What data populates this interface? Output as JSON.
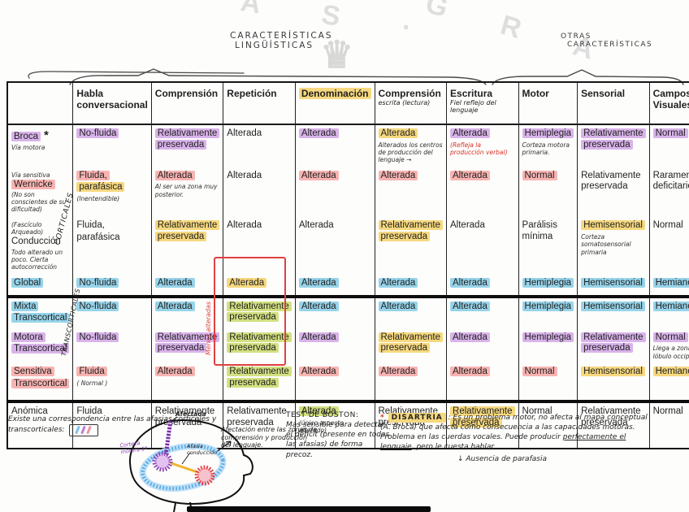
{
  "colors": {
    "purple": "#d9b3ea",
    "pink": "#f8b4b2",
    "yellow": "#f6d87f",
    "blue": "#97d4ea",
    "green": "#d3e081",
    "red_ink": "#e04040"
  },
  "watermark": {
    "text1": "A S ·",
    "text2": "G R A",
    "crown": "♛"
  },
  "annotations": {
    "linguistic_line1": "CARACTERÍSTICAS",
    "linguistic_line2": "LINGÜÍSTICAS",
    "other_line1": "OTRAS",
    "other_line2": "CARACTERÍSTICAS"
  },
  "table": {
    "group_labels": {
      "cortical": "CORTICALES",
      "transcortical": "TRANSCORTICALES"
    },
    "repetition_note": "Menos alteradas",
    "columns": [
      {
        "label": "Habla conversacional"
      },
      {
        "label": "Comprensión"
      },
      {
        "label": "Repetición"
      },
      {
        "label": "Denominación",
        "hl": "yellow"
      },
      {
        "label": "Comprensión",
        "subnote": "escrita (lectura)"
      },
      {
        "label": "Escritura",
        "subnote": "Fiel reflejo del lenguaje"
      },
      {
        "label": "Motor"
      },
      {
        "label": "Sensorial"
      },
      {
        "label": "Campos Visuales"
      }
    ],
    "rows": [
      {
        "label_lines": [
          {
            "t": "Broca",
            "hl": "purple"
          }
        ],
        "mark": "*",
        "note_below": "Vía motora",
        "cells": [
          {
            "lines": [
              {
                "t": "No-fluida",
                "hl": "purple"
              }
            ]
          },
          {
            "lines": [
              {
                "t": "Relativamente preservada",
                "hl": "purple"
              }
            ]
          },
          {
            "lines": [
              {
                "t": "Alterada"
              }
            ]
          },
          {
            "lines": [
              {
                "t": "Alterada",
                "hl": "purple"
              }
            ]
          },
          {
            "lines": [
              {
                "t": "Alterada",
                "hl": "yellow"
              }
            ],
            "note": "Alterados los centros de producción del lenguaje →"
          },
          {
            "lines": [
              {
                "t": "Alterada",
                "hl": "purple"
              }
            ],
            "note": "(Refleja la producción verbal)",
            "note_red": true
          },
          {
            "lines": [
              {
                "t": "Hemiplegia",
                "hl": "purple"
              }
            ],
            "note": "Corteza motora primaria."
          },
          {
            "lines": [
              {
                "t": "Relativamente preservada",
                "hl": "purple"
              }
            ]
          },
          {
            "lines": [
              {
                "t": "Normal",
                "hl": "purple"
              }
            ]
          }
        ]
      },
      {
        "label_lines": [
          {
            "t": "Wernicke",
            "hl": "pink"
          }
        ],
        "note_above": "Vía sensitiva",
        "note_below": "(No son conscientes de su dificultad)",
        "cells": [
          {
            "lines": [
              {
                "t": "Fluida,",
                "hl": "pink"
              },
              {
                "t": "parafásica",
                "hl": "yellow"
              }
            ],
            "note": "(Inentendible)"
          },
          {
            "lines": [
              {
                "t": "Alterada",
                "hl": "pink"
              }
            ],
            "note": "Al ser una zona muy posterior."
          },
          {
            "lines": [
              {
                "t": "Alterada"
              }
            ]
          },
          {
            "lines": [
              {
                "t": "Alterada",
                "hl": "pink"
              }
            ]
          },
          {
            "lines": [
              {
                "t": "Alterada",
                "hl": "pink"
              }
            ]
          },
          {
            "lines": [
              {
                "t": "Alterada",
                "hl": "pink"
              }
            ]
          },
          {
            "lines": [
              {
                "t": "Normal",
                "hl": "pink"
              }
            ]
          },
          {
            "lines": [
              {
                "t": "Relativamente preservada"
              }
            ]
          },
          {
            "lines": [
              {
                "t": "Raramente deficitarios"
              }
            ]
          }
        ]
      },
      {
        "label_lines": [
          {
            "t": "Conducción"
          }
        ],
        "note_above": "(Fascículo Arqueado)",
        "note_below": "Todo alterado un poco. Cierta autocorrección",
        "cells": [
          {
            "lines": [
              {
                "t": "Fluida,"
              },
              {
                "t": "parafásica"
              }
            ]
          },
          {
            "lines": [
              {
                "t": "Relativamente preservada",
                "hl": "yellow"
              }
            ]
          },
          {
            "lines": [
              {
                "t": "Alterada"
              }
            ]
          },
          {
            "lines": [
              {
                "t": "Alterada"
              }
            ]
          },
          {
            "lines": [
              {
                "t": "Relativamente preservada",
                "hl": "yellow"
              }
            ]
          },
          {
            "lines": [
              {
                "t": "Alterada"
              }
            ]
          },
          {
            "lines": [
              {
                "t": "Parálisis mínima"
              }
            ]
          },
          {
            "lines": [
              {
                "t": "Hemisensorial",
                "hl": "yellow"
              }
            ],
            "note": "Corteza somatosensorial primaria"
          },
          {
            "lines": [
              {
                "t": "Normal"
              }
            ]
          }
        ]
      },
      {
        "label_lines": [
          {
            "t": "Global",
            "hl": "blue"
          }
        ],
        "cells": [
          {
            "lines": [
              {
                "t": "No-fluida",
                "hl": "blue"
              }
            ]
          },
          {
            "lines": [
              {
                "t": "Alterada",
                "hl": "blue"
              }
            ]
          },
          {
            "lines": [
              {
                "t": "Alterada",
                "hl": "yellow"
              }
            ]
          },
          {
            "lines": [
              {
                "t": "Alterada",
                "hl": "blue"
              }
            ]
          },
          {
            "lines": [
              {
                "t": "Alterada",
                "hl": "blue"
              }
            ]
          },
          {
            "lines": [
              {
                "t": "Alterada",
                "hl": "blue"
              }
            ]
          },
          {
            "lines": [
              {
                "t": "Hemiplegia",
                "hl": "blue"
              }
            ]
          },
          {
            "lines": [
              {
                "t": "Hemisensorial",
                "hl": "blue"
              }
            ]
          },
          {
            "lines": [
              {
                "t": "Hemianopsia",
                "hl": "blue"
              }
            ]
          }
        ]
      },
      {
        "label_lines": [
          {
            "t": "Mixta",
            "hl": "blue"
          },
          {
            "t": "Transcortical",
            "hl": "blue"
          }
        ],
        "section_start": true,
        "cells": [
          {
            "lines": [
              {
                "t": "No-fluida",
                "hl": "blue"
              }
            ]
          },
          {
            "lines": [
              {
                "t": "Alterada",
                "hl": "blue"
              }
            ]
          },
          {
            "lines": [
              {
                "t": "Relativamente preservada",
                "hl": "green"
              }
            ]
          },
          {
            "lines": [
              {
                "t": "Alterada",
                "hl": "blue"
              }
            ]
          },
          {
            "lines": [
              {
                "t": "Alterada",
                "hl": "blue"
              }
            ]
          },
          {
            "lines": [
              {
                "t": "Alterada",
                "hl": "blue"
              }
            ]
          },
          {
            "lines": [
              {
                "t": "Hemiplegia",
                "hl": "blue"
              }
            ]
          },
          {
            "lines": [
              {
                "t": "Hemisensorial",
                "hl": "blue"
              }
            ]
          },
          {
            "lines": [
              {
                "t": "Hemianopsia",
                "hl": "blue"
              }
            ]
          }
        ]
      },
      {
        "label_lines": [
          {
            "t": "Motora",
            "hl": "purple"
          },
          {
            "t": "Transcortical",
            "hl": "purple"
          }
        ],
        "cells": [
          {
            "lines": [
              {
                "t": "No-fluida",
                "hl": "purple"
              }
            ]
          },
          {
            "lines": [
              {
                "t": "Relativamente preservada",
                "hl": "purple"
              }
            ]
          },
          {
            "lines": [
              {
                "t": "Relativamente preservada",
                "hl": "green"
              }
            ]
          },
          {
            "lines": [
              {
                "t": "Alterada",
                "hl": "purple"
              }
            ]
          },
          {
            "lines": [
              {
                "t": "Relativamente preservada",
                "hl": "yellow"
              }
            ]
          },
          {
            "lines": [
              {
                "t": "Alterada",
                "hl": "purple"
              }
            ]
          },
          {
            "lines": [
              {
                "t": "Hemiplegia",
                "hl": "purple"
              }
            ]
          },
          {
            "lines": [
              {
                "t": "Relativamente preservada",
                "hl": "purple"
              }
            ]
          },
          {
            "lines": [
              {
                "t": "Normal",
                "hl": "purple"
              }
            ],
            "note": "Llega a zonas del lóbulo occipital"
          }
        ]
      },
      {
        "label_lines": [
          {
            "t": "Sensitiva",
            "hl": "pink"
          },
          {
            "t": "Transcortical",
            "hl": "pink"
          }
        ],
        "cells": [
          {
            "lines": [
              {
                "t": "Fluida",
                "hl": "pink"
              }
            ],
            "note": "( Normal )"
          },
          {
            "lines": [
              {
                "t": "Alterada",
                "hl": "pink"
              }
            ]
          },
          {
            "lines": [
              {
                "t": "Relativamente preservada",
                "hl": "green"
              }
            ]
          },
          {
            "lines": [
              {
                "t": "Alterada",
                "hl": "pink"
              }
            ]
          },
          {
            "lines": [
              {
                "t": "Alterada",
                "hl": "pink"
              }
            ]
          },
          {
            "lines": [
              {
                "t": "Alterada",
                "hl": "pink"
              }
            ]
          },
          {
            "lines": [
              {
                "t": "Normal",
                "hl": "pink"
              }
            ]
          },
          {
            "lines": [
              {
                "t": "Hemisensorial",
                "hl": "yellow"
              }
            ]
          },
          {
            "lines": [
              {
                "t": "Hemianopsia",
                "hl": "yellow"
              }
            ]
          }
        ]
      },
      {
        "label_lines": [
          {
            "t": "Anómica"
          }
        ],
        "section_start": true,
        "cells": [
          {
            "lines": [
              {
                "t": "Fluida"
              }
            ]
          },
          {
            "lines": [
              {
                "t": "Relativamente preservada"
              }
            ]
          },
          {
            "lines": [
              {
                "t": "Relativamente preservada"
              }
            ]
          },
          {
            "lines": [
              {
                "t": "Alterada",
                "hl": "green"
              }
            ],
            "note": "(único aspecto alterado)"
          },
          {
            "lines": [
              {
                "t": "Relativamente preservada"
              }
            ]
          },
          {
            "lines": [
              {
                "t": "Relativamente preservada",
                "hl": "yellow"
              }
            ]
          },
          {
            "lines": [
              {
                "t": "Normal"
              }
            ]
          },
          {
            "lines": [
              {
                "t": "Relativamente preservada"
              }
            ]
          },
          {
            "lines": [
              {
                "t": "Normal"
              }
            ]
          }
        ]
      }
    ]
  },
  "footnotes": {
    "correspondence_line1": "Existe una correspondencia entre las afasias corticales y",
    "correspondence_line2": "transcorticales:",
    "boston_title": "TEST DE BOSTON:",
    "boston_body": "Más sensible para detectar el déficit (presente en todas las afasias) de forma precoz.",
    "dis_mark": "*",
    "dis_title": "DISARTRIA",
    "dis_body_pre": ": Es un problema motor, no afecta al mapa conceptual (A. Broca) que afecta como consecuencia a las capacidades motoras. Problema en las cuerdas vocales. Puede producir ",
    "dis_body_underline": "perfectamente el lenguaje",
    "dis_body_post": ", pero le cuesta hablar",
    "dis_sub": "↓ Ausencia de parafasia",
    "brain_afectada": "Afectada",
    "brain_corteza": "Corteza motora 1ª",
    "brain_afasia": "Afasia conducción",
    "brain_right": "Afectación entre las zonas de comprensión y producción del lenguaje."
  }
}
